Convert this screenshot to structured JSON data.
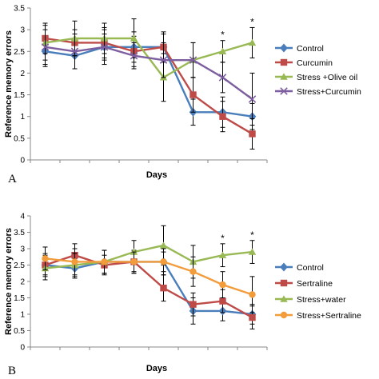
{
  "chart_data": [
    {
      "type": "line",
      "panel": "A",
      "xlabel": "Days",
      "ylabel": "Reference memory errors",
      "ylim": [
        0,
        3.5
      ],
      "yticks": [
        "0",
        "0.5",
        "1",
        "1.5",
        "2",
        "2.5",
        "3",
        "3.5"
      ],
      "x": [
        1,
        2,
        3,
        4,
        5,
        6,
        7,
        8
      ],
      "series": [
        {
          "name": "Control",
          "color": "#4a7ebb",
          "marker": "diamond",
          "values": [
            2.5,
            2.4,
            2.6,
            2.6,
            2.6,
            1.1,
            1.1,
            1.0
          ],
          "errors": [
            0.35,
            0.3,
            0.3,
            0.35,
            0.3,
            0.3,
            0.35,
            0.3
          ]
        },
        {
          "name": "Curcumin",
          "color": "#be4b48",
          "marker": "square",
          "values": [
            2.8,
            2.7,
            2.7,
            2.5,
            2.6,
            1.5,
            1.0,
            0.6
          ],
          "errors": [
            0.35,
            0.3,
            0.35,
            0.35,
            0.35,
            0.4,
            0.35,
            0.35
          ]
        },
        {
          "name": "Stress +Olive oil",
          "color": "#98b954",
          "marker": "triangle",
          "values": [
            2.7,
            2.8,
            2.8,
            2.8,
            1.9,
            2.3,
            2.5,
            2.7
          ],
          "errors": [
            0.4,
            0.4,
            0.35,
            0.45,
            0.55,
            0.4,
            0.25,
            0.35
          ]
        },
        {
          "name": "Stress+Curcumin",
          "color": "#7d5fa0",
          "marker": "x",
          "values": [
            2.6,
            2.5,
            2.6,
            2.4,
            2.3,
            2.3,
            1.9,
            1.4
          ],
          "errors": [
            0.4,
            0.4,
            0.4,
            0.3,
            0.4,
            0.4,
            0.35,
            0.6
          ]
        }
      ],
      "annotations": [
        {
          "text": "*",
          "x": 7
        },
        {
          "text": "*",
          "x": 8
        }
      ],
      "legend": "right"
    },
    {
      "type": "line",
      "panel": "B",
      "xlabel": "Days",
      "ylabel": "Reference memory errors",
      "ylim": [
        0,
        4
      ],
      "yticks": [
        "0",
        "0.5",
        "1",
        "1.5",
        "2",
        "2.5",
        "3",
        "3.5",
        "4"
      ],
      "x": [
        1,
        2,
        3,
        4,
        5,
        6,
        7,
        8
      ],
      "series": [
        {
          "name": "Control",
          "color": "#4a7ebb",
          "marker": "diamond",
          "values": [
            2.5,
            2.4,
            2.6,
            2.6,
            2.6,
            1.1,
            1.1,
            1.0
          ],
          "errors": [
            0.3,
            0.3,
            0.35,
            0.35,
            0.3,
            0.4,
            0.3,
            0.3
          ]
        },
        {
          "name": "Sertraline",
          "color": "#be4b48",
          "marker": "square",
          "values": [
            2.5,
            2.8,
            2.5,
            2.6,
            1.8,
            1.3,
            1.4,
            0.9
          ],
          "errors": [
            0.35,
            0.35,
            0.3,
            0.35,
            0.4,
            0.35,
            0.35,
            0.35
          ]
        },
        {
          "name": "Stress+water",
          "color": "#98b954",
          "marker": "triangle",
          "values": [
            2.4,
            2.5,
            2.6,
            2.9,
            3.1,
            2.6,
            2.8,
            2.9
          ],
          "errors": [
            0.35,
            0.35,
            0.35,
            0.35,
            0.6,
            0.5,
            0.35,
            0.35
          ]
        },
        {
          "name": "Stress+Sertraline",
          "color": "#f39c3c",
          "marker": "circle",
          "values": [
            2.7,
            2.6,
            2.6,
            2.6,
            2.6,
            2.3,
            1.9,
            1.6
          ],
          "errors": [
            0.35,
            0.4,
            0.35,
            0.3,
            0.4,
            0.45,
            0.4,
            0.55
          ]
        }
      ],
      "annotations": [
        {
          "text": "*",
          "x": 7
        },
        {
          "text": "*",
          "x": 8
        }
      ],
      "legend": "right"
    }
  ]
}
